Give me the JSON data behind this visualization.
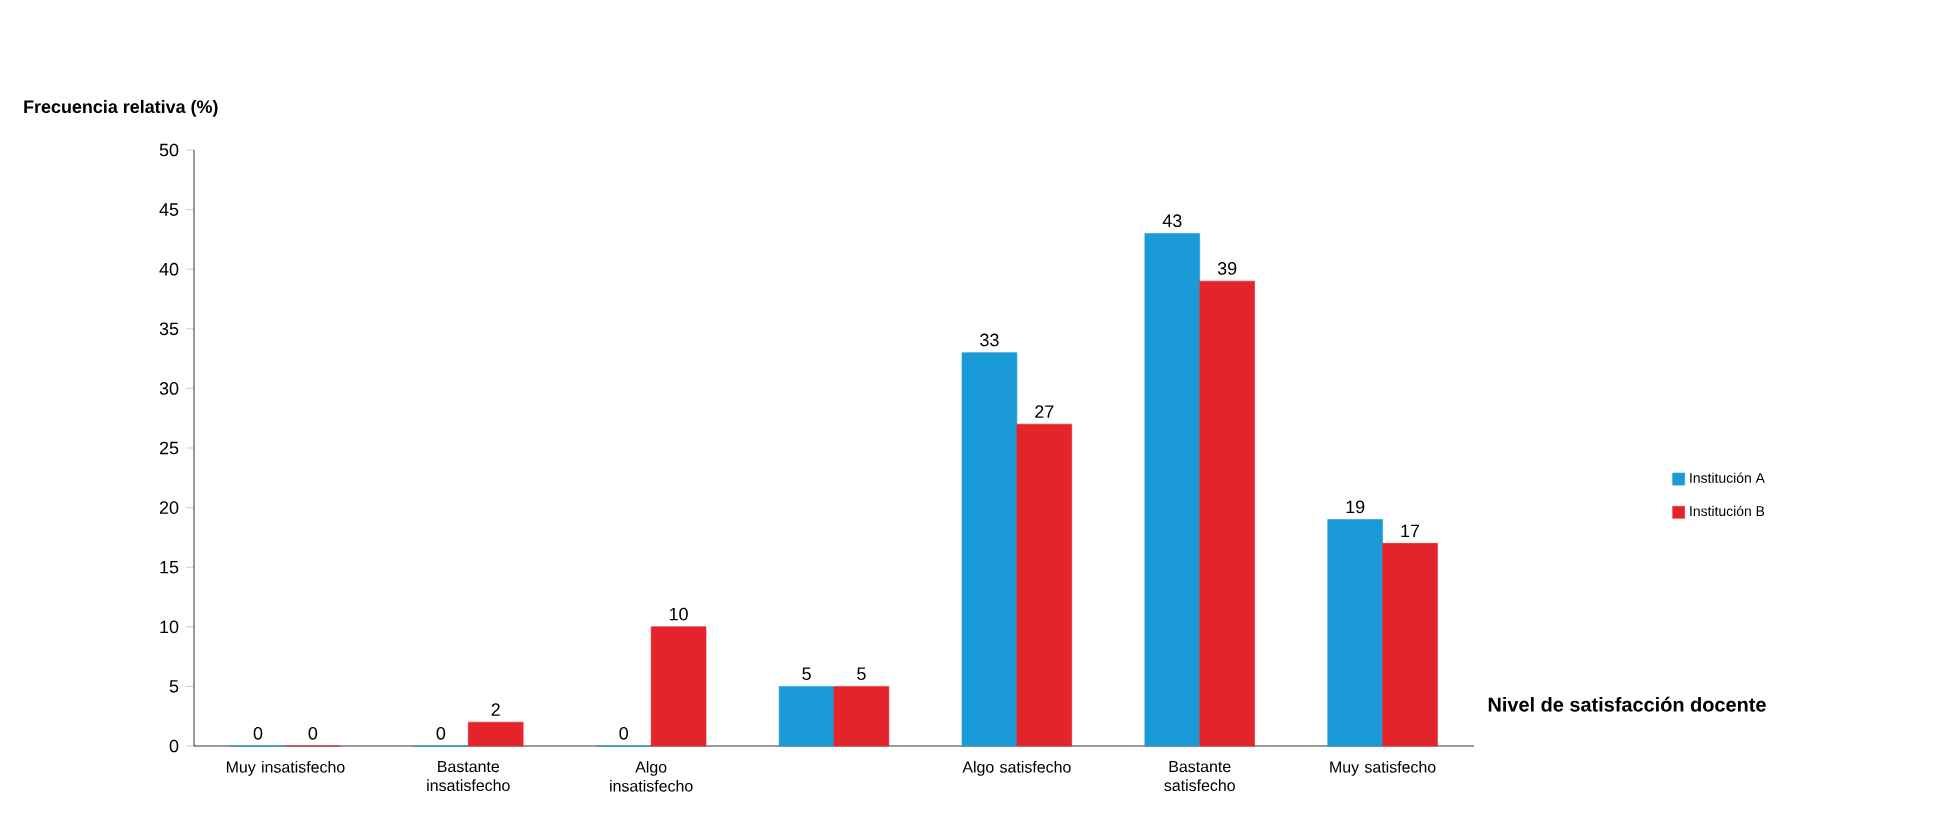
{
  "chart_data": {
    "type": "bar",
    "xlabel": "Nivel de satisfacción docente",
    "ylabel": "Frecuencia relativa (%)",
    "categories": [
      "Muy insatisfecho",
      "Bastante insatisfecho",
      "Algo insatisfecho",
      null,
      "Algo satisfecho",
      "Bastante satisfecho",
      "Muy satisfecho"
    ],
    "series": [
      {
        "name": "Institución A",
        "color": "#1a9ad6",
        "values": [
          0,
          0,
          0,
          5,
          33,
          43,
          19
        ]
      },
      {
        "name": "Institución B",
        "color": "#e3242b",
        "values": [
          0,
          2,
          10,
          5,
          27,
          39,
          17
        ]
      }
    ],
    "ylim": [
      0,
      50
    ],
    "yticks": [
      0,
      5,
      10,
      15,
      20,
      25,
      30,
      35,
      40,
      45,
      50
    ],
    "data_labels": true,
    "legend": "right",
    "grid": false
  }
}
